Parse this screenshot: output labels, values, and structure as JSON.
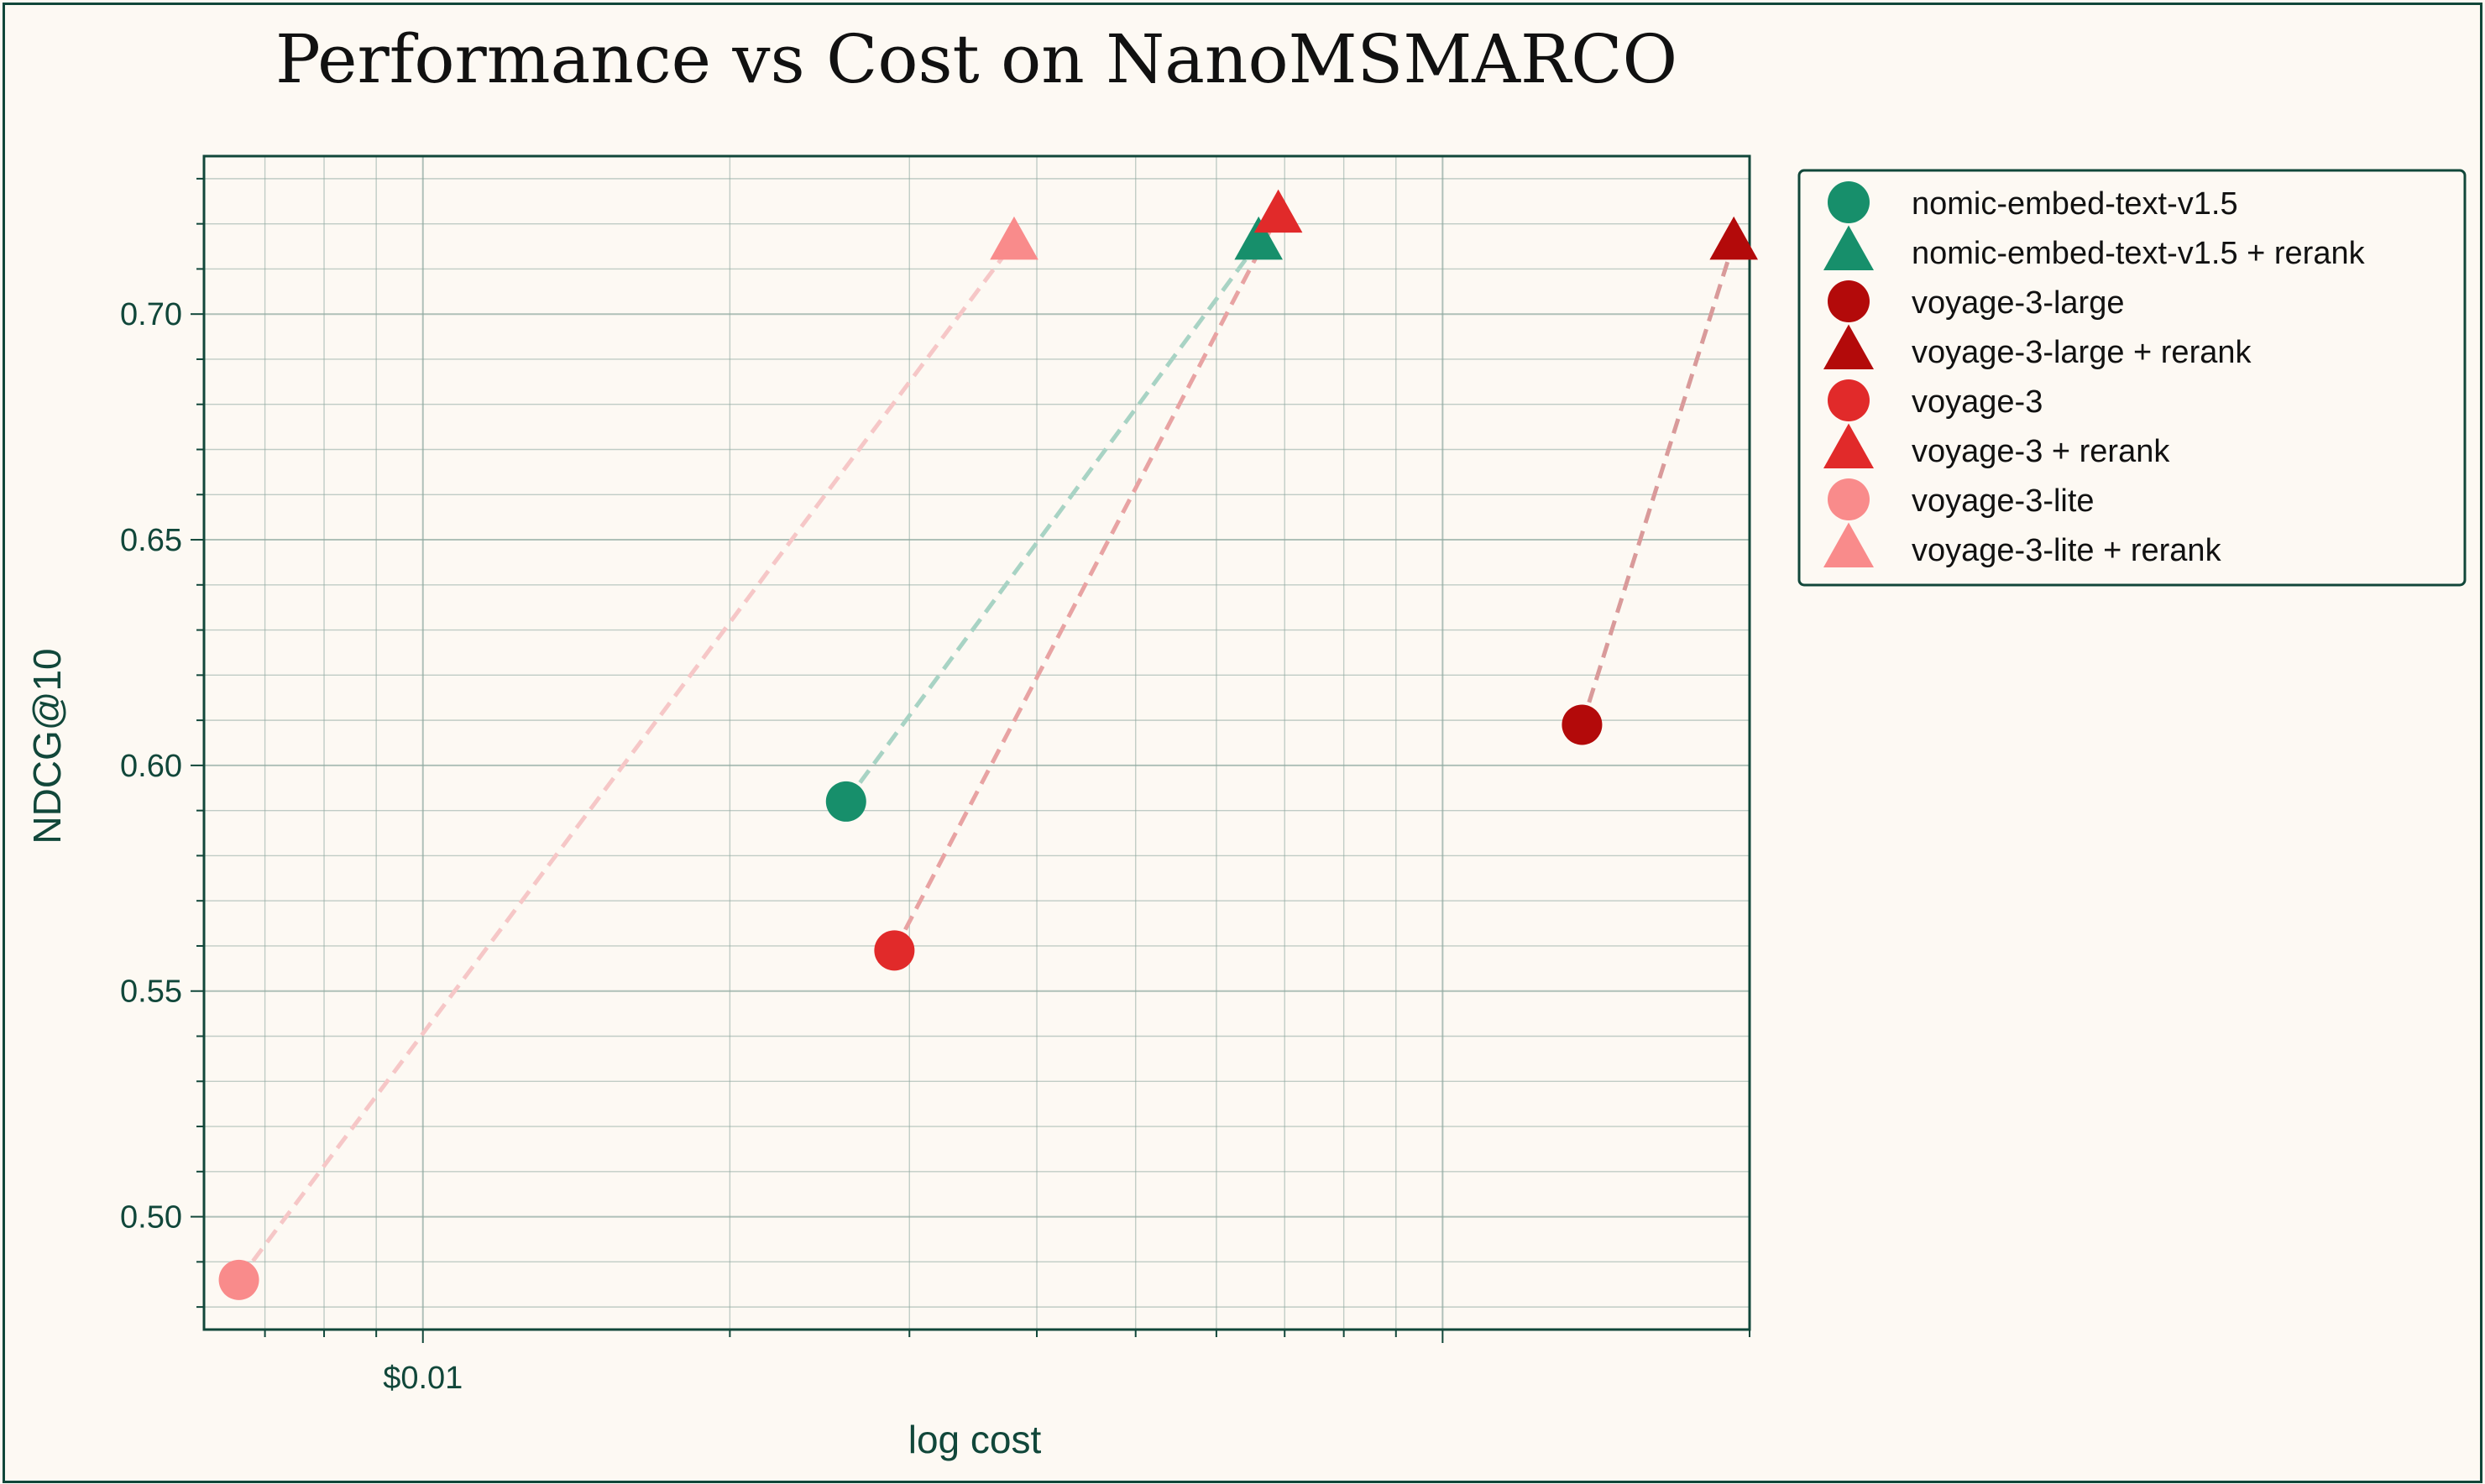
{
  "chart_data": {
    "type": "scatter",
    "title": "Performance vs Cost on NanoMSMARCO",
    "xlabel": "log cost",
    "ylabel": "NDCG@10",
    "xscale": "log",
    "xlim": [
      0.0061,
      0.2
    ],
    "ylim": [
      0.475,
      0.735
    ],
    "grid": true,
    "legend": "outside-right-top",
    "x_ticks": [
      {
        "value": 0.01,
        "label": "$0.01"
      }
    ],
    "y_ticks": [
      {
        "value": 0.5,
        "label": "0.50"
      },
      {
        "value": 0.55,
        "label": "0.55"
      },
      {
        "value": 0.6,
        "label": "0.60"
      },
      {
        "value": 0.65,
        "label": "0.65"
      },
      {
        "value": 0.7,
        "label": "0.70"
      }
    ],
    "series": [
      {
        "name": "nomic-embed-text-v1.5",
        "marker": "circle",
        "color": "#178f6b",
        "x": 0.026,
        "y": 0.592
      },
      {
        "name": "nomic-embed-text-v1.5 + rerank",
        "marker": "triangle",
        "color": "#178f6b",
        "x": 0.066,
        "y": 0.716
      },
      {
        "name": "voyage-3-large",
        "marker": "circle",
        "color": "#b30a0a",
        "x": 0.137,
        "y": 0.609
      },
      {
        "name": "voyage-3-large + rerank",
        "marker": "triangle",
        "color": "#b30a0a",
        "x": 0.193,
        "y": 0.716
      },
      {
        "name": "voyage-3",
        "marker": "circle",
        "color": "#e12a2a",
        "x": 0.029,
        "y": 0.559
      },
      {
        "name": "voyage-3 + rerank",
        "marker": "triangle",
        "color": "#e12a2a",
        "x": 0.069,
        "y": 0.722
      },
      {
        "name": "voyage-3-lite",
        "marker": "circle",
        "color": "#f98b8b",
        "x": 0.0066,
        "y": 0.486
      },
      {
        "name": "voyage-3-lite + rerank",
        "marker": "triangle",
        "color": "#f98b8b",
        "x": 0.038,
        "y": 0.716
      }
    ],
    "connections": [
      {
        "from": 0,
        "to": 1,
        "color": "#a8d3c4"
      },
      {
        "from": 2,
        "to": 3,
        "color": "#d99a9a"
      },
      {
        "from": 4,
        "to": 5,
        "color": "#e8a3a3"
      },
      {
        "from": 6,
        "to": 7,
        "color": "#f6c7c7"
      }
    ]
  },
  "colors": {
    "frame": "#11473a",
    "background": "#fdf9f3",
    "grid": "#8fa9a0",
    "text": "#11473a"
  }
}
